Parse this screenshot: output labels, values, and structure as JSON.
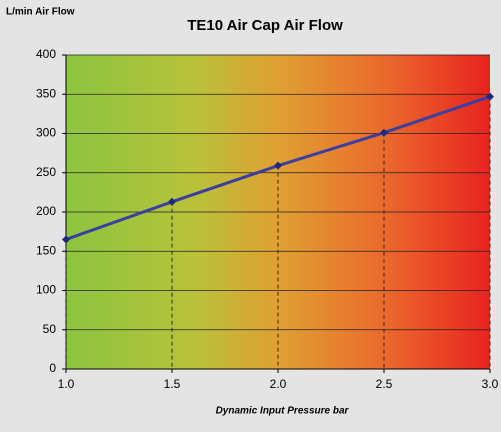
{
  "chart_data": {
    "type": "line",
    "title": "TE10 Air Cap Air Flow",
    "y_label": "L/min Air Flow",
    "x_label": "Dynamic Input Pressure bar",
    "x": [
      1.0,
      1.5,
      2.0,
      2.5,
      3.0
    ],
    "series": [
      {
        "name": "Air Flow",
        "color": "#3a3fa0",
        "values": [
          165,
          213,
          259,
          301,
          347
        ]
      }
    ],
    "xlim": [
      1,
      3
    ],
    "xticks": [
      {
        "value": 1,
        "label": "1.0"
      },
      1.5,
      {
        "value": 2,
        "label": "2.0"
      },
      2.5,
      {
        "value": 3,
        "label": "3.0"
      }
    ],
    "ylim": [
      0,
      400
    ],
    "yticks": [
      0,
      50,
      100,
      150,
      200,
      250,
      300,
      350,
      400
    ],
    "grid": true
  }
}
